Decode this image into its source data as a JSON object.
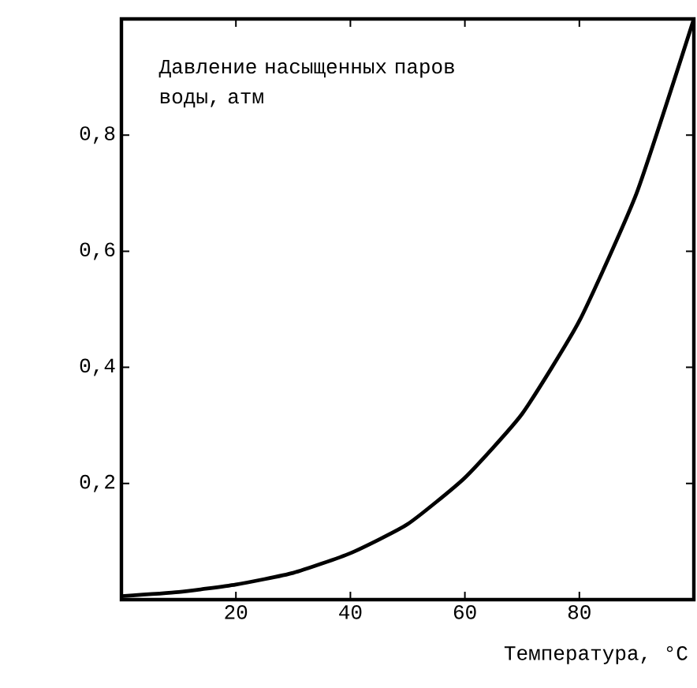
{
  "chart_data": {
    "type": "line",
    "xlabel": "Температура, °C",
    "annotations": [
      "Давление насыщенных паров воды, атм"
    ],
    "x": [
      0,
      10,
      20,
      30,
      40,
      50,
      60,
      70,
      80,
      90,
      100
    ],
    "series": [
      {
        "color": "#000000",
        "values": [
          0.006,
          0.013,
          0.026,
          0.046,
          0.08,
          0.13,
          0.21,
          0.32,
          0.48,
          0.7,
          1.0
        ]
      }
    ],
    "xlim": [
      0,
      100
    ],
    "ylim": [
      0,
      1
    ],
    "xticks": [
      20,
      40,
      60,
      80
    ],
    "yticks": [
      {
        "value": 0.2,
        "label": "0,2"
      },
      {
        "value": 0.4,
        "label": "0,4"
      },
      {
        "value": 0.6,
        "label": "0,6"
      },
      {
        "value": 0.8,
        "label": "0,8"
      }
    ],
    "marker": "none",
    "line_style": "solid"
  }
}
